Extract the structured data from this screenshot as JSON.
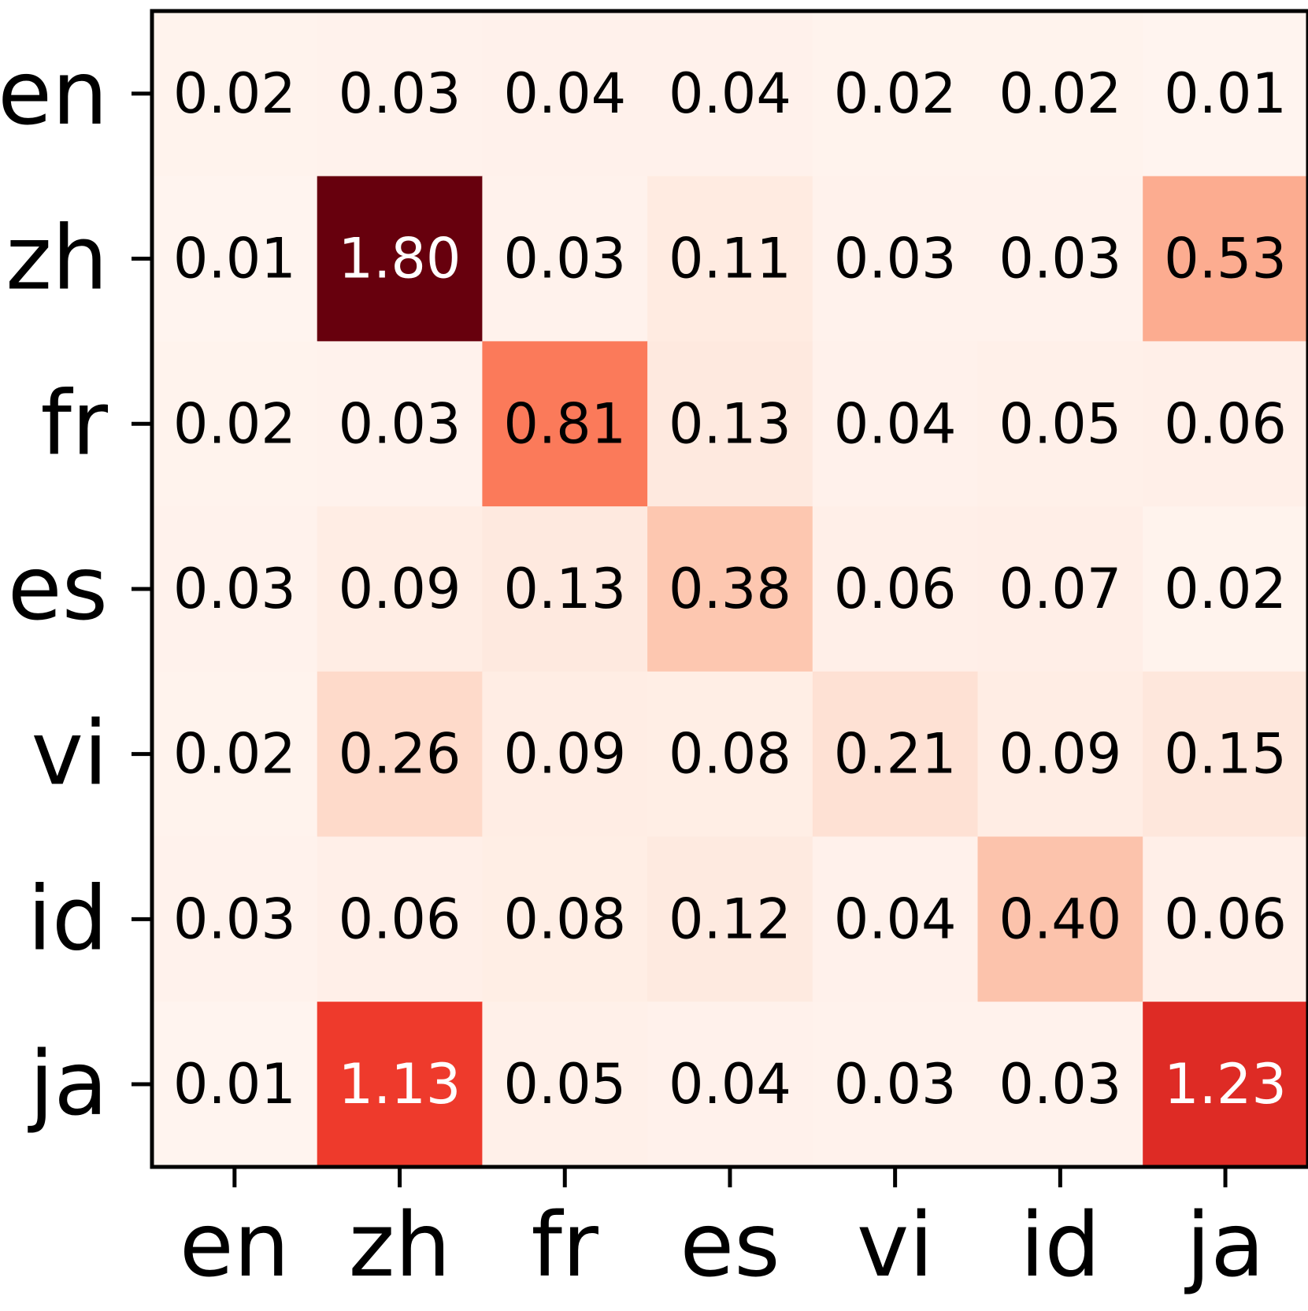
{
  "chart_data": {
    "type": "heatmap",
    "title": "",
    "xlabel": "",
    "ylabel": "",
    "x_categories": [
      "en",
      "zh",
      "fr",
      "es",
      "vi",
      "id",
      "ja"
    ],
    "y_categories": [
      "en",
      "zh",
      "fr",
      "es",
      "vi",
      "id",
      "ja"
    ],
    "values": [
      [
        0.02,
        0.03,
        0.04,
        0.04,
        0.02,
        0.02,
        0.01
      ],
      [
        0.01,
        1.8,
        0.03,
        0.11,
        0.03,
        0.03,
        0.53
      ],
      [
        0.02,
        0.03,
        0.81,
        0.13,
        0.04,
        0.05,
        0.06
      ],
      [
        0.03,
        0.09,
        0.13,
        0.38,
        0.06,
        0.07,
        0.02
      ],
      [
        0.02,
        0.26,
        0.09,
        0.08,
        0.21,
        0.09,
        0.15
      ],
      [
        0.03,
        0.06,
        0.08,
        0.12,
        0.04,
        0.4,
        0.06
      ],
      [
        0.01,
        1.13,
        0.05,
        0.04,
        0.03,
        0.03,
        1.23
      ]
    ],
    "value_labels": [
      [
        "0.02",
        "0.03",
        "0.04",
        "0.04",
        "0.02",
        "0.02",
        "0.01"
      ],
      [
        "0.01",
        "1.80",
        "0.03",
        "0.11",
        "0.03",
        "0.03",
        "0.53"
      ],
      [
        "0.02",
        "0.03",
        "0.81",
        "0.13",
        "0.04",
        "0.05",
        "0.06"
      ],
      [
        "0.03",
        "0.09",
        "0.13",
        "0.38",
        "0.06",
        "0.07",
        "0.02"
      ],
      [
        "0.02",
        "0.26",
        "0.09",
        "0.08",
        "0.21",
        "0.09",
        "0.15"
      ],
      [
        "0.03",
        "0.06",
        "0.08",
        "0.12",
        "0.04",
        "0.40",
        "0.06"
      ],
      [
        "0.01",
        "1.13",
        "0.05",
        "0.04",
        "0.03",
        "0.03",
        "1.23"
      ]
    ],
    "colormap": "Reds",
    "color_range": [
      0,
      1.8
    ],
    "grid": false,
    "legend": "none"
  }
}
